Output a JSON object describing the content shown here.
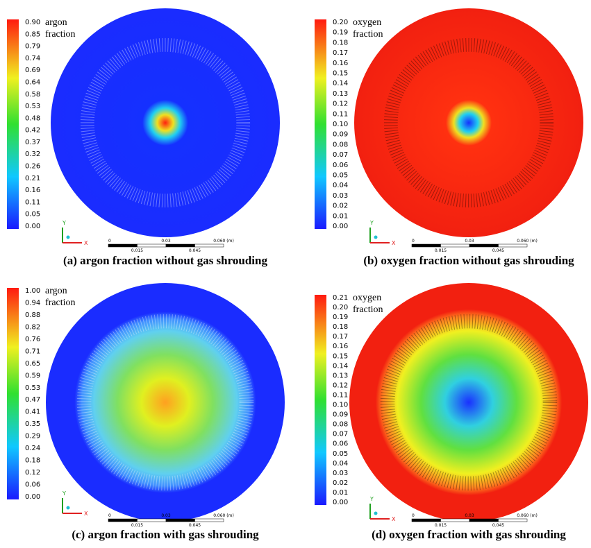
{
  "panels": [
    {
      "legend_title": [
        "argon",
        "fraction"
      ],
      "ticks": [
        "0.90",
        "0.85",
        "0.79",
        "0.74",
        "0.69",
        "0.64",
        "0.58",
        "0.53",
        "0.48",
        "0.42",
        "0.37",
        "0.32",
        "0.26",
        "0.21",
        "0.16",
        "0.11",
        "0.05",
        "0.00"
      ],
      "axes": [
        "Y",
        "X"
      ],
      "scale": [
        "0",
        "0.015",
        "0.03",
        "0.045",
        "0.060 (m)"
      ],
      "caption": "(a) argon fraction without gas shrouding"
    },
    {
      "legend_title": [
        "oxygen",
        "fraction"
      ],
      "ticks": [
        "0.20",
        "0.19",
        "0.18",
        "0.17",
        "0.16",
        "0.15",
        "0.14",
        "0.13",
        "0.12",
        "0.11",
        "0.10",
        "0.09",
        "0.08",
        "0.07",
        "0.06",
        "0.05",
        "0.04",
        "0.03",
        "0.02",
        "0.01",
        "0.00"
      ],
      "axes": [
        "Y",
        "X"
      ],
      "scale": [
        "0",
        "0.015",
        "0.03",
        "0.045",
        "0.060 (m)"
      ],
      "caption": "(b) oxygen fraction without gas shrouding"
    },
    {
      "legend_title": [
        "argon",
        "fraction"
      ],
      "ticks": [
        "1.00",
        "0.94",
        "0.88",
        "0.82",
        "0.76",
        "0.71",
        "0.65",
        "0.59",
        "0.53",
        "0.47",
        "0.41",
        "0.35",
        "0.29",
        "0.24",
        "0.18",
        "0.12",
        "0.06",
        "0.00"
      ],
      "axes": [
        "Y",
        "X"
      ],
      "scale": [
        "0",
        "0.015",
        "0.03",
        "0.045",
        "0.060 (m)"
      ],
      "caption": "(c) argon fraction with gas shrouding"
    },
    {
      "legend_title": [
        "oxygen",
        "fraction"
      ],
      "ticks": [
        "0.21",
        "0.20",
        "0.19",
        "0.18",
        "0.17",
        "0.16",
        "0.15",
        "0.14",
        "0.13",
        "0.12",
        "0.11",
        "0.10",
        "0.09",
        "0.08",
        "0.07",
        "0.06",
        "0.05",
        "0.04",
        "0.03",
        "0.02",
        "0.01",
        "0.00"
      ],
      "axes": [
        "Y",
        "X"
      ],
      "scale": [
        "0",
        "0.015",
        "0.03",
        "0.045",
        "0.060 (m)"
      ],
      "caption": "(d) oxygen fraction with gas shrouding"
    }
  ]
}
